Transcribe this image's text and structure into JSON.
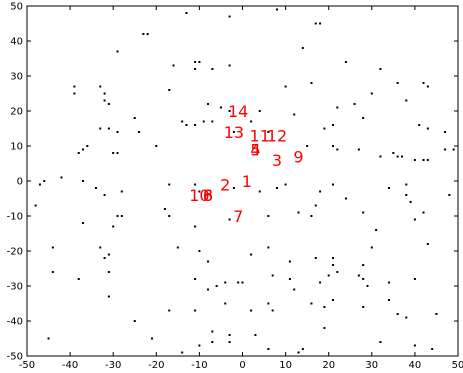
{
  "chart_data": {
    "type": "scatter",
    "title": "",
    "xlabel": "",
    "ylabel": "",
    "xlim": [
      -50,
      50
    ],
    "ylim": [
      -50,
      50
    ],
    "grid": false,
    "x_ticks": [
      -50,
      -40,
      -30,
      -20,
      -10,
      0,
      10,
      20,
      30,
      40,
      50
    ],
    "y_ticks": [
      -50,
      -40,
      -30,
      -20,
      -10,
      0,
      10,
      20,
      30,
      40,
      50
    ],
    "x_tick_labels": [
      "-50",
      "-40",
      "-30",
      "-20",
      "-10",
      "0",
      "10",
      "20",
      "30",
      "40",
      "50"
    ],
    "y_tick_labels": [
      "-50",
      "-40",
      "-30",
      "-20",
      "-10",
      "0",
      "10",
      "20",
      "30",
      "40",
      "50"
    ],
    "series": [
      {
        "marker": "dot",
        "color": "#000000",
        "points": [
          [
            -13,
            48
          ],
          [
            8,
            49
          ],
          [
            -3,
            47
          ],
          [
            17,
            45
          ],
          [
            18,
            45
          ],
          [
            -23,
            42
          ],
          [
            -22,
            42
          ],
          [
            -29,
            37
          ],
          [
            14,
            38
          ],
          [
            -11,
            34
          ],
          [
            -10,
            34
          ],
          [
            -16,
            33
          ],
          [
            -11,
            32
          ],
          [
            -7,
            32
          ],
          [
            -3,
            33
          ],
          [
            32,
            32
          ],
          [
            24,
            34
          ],
          [
            -39,
            27
          ],
          [
            -39,
            25
          ],
          [
            -33,
            27
          ],
          [
            -32,
            25
          ],
          [
            -32,
            23
          ],
          [
            -31,
            22
          ],
          [
            -17,
            26
          ],
          [
            10,
            27
          ],
          [
            16,
            28
          ],
          [
            36,
            28
          ],
          [
            42,
            28
          ],
          [
            43,
            27
          ],
          [
            30,
            25
          ],
          [
            26,
            22
          ],
          [
            38,
            23
          ],
          [
            -8,
            22
          ],
          [
            -5,
            21
          ],
          [
            -3,
            20
          ],
          [
            4,
            20
          ],
          [
            12,
            19
          ],
          [
            22,
            21
          ],
          [
            28,
            18
          ],
          [
            -25,
            18
          ],
          [
            -14,
            17
          ],
          [
            -13,
            16
          ],
          [
            -11,
            16
          ],
          [
            -9,
            17
          ],
          [
            -7,
            17
          ],
          [
            2,
            17
          ],
          [
            -33,
            15
          ],
          [
            -31,
            15
          ],
          [
            -29,
            14
          ],
          [
            -24,
            14
          ],
          [
            -2,
            14
          ],
          [
            6,
            14
          ],
          [
            19,
            15
          ],
          [
            21,
            16
          ],
          [
            41,
            16
          ],
          [
            43,
            15
          ],
          [
            47,
            14
          ],
          [
            -37,
            9
          ],
          [
            -38,
            8
          ],
          [
            -36,
            10
          ],
          [
            -30,
            8
          ],
          [
            -29,
            8
          ],
          [
            -20,
            10
          ],
          [
            15,
            10
          ],
          [
            21,
            10
          ],
          [
            22,
            9
          ],
          [
            27,
            9
          ],
          [
            32,
            7
          ],
          [
            35,
            8
          ],
          [
            36,
            7
          ],
          [
            37,
            7
          ],
          [
            40,
            6
          ],
          [
            42,
            6
          ],
          [
            43,
            6
          ],
          [
            47,
            9
          ],
          [
            49,
            9
          ],
          [
            -46,
            0
          ],
          [
            -47,
            -1
          ],
          [
            -48,
            -7
          ],
          [
            -42,
            1
          ],
          [
            -34,
            -2
          ],
          [
            -32,
            -4
          ],
          [
            -17,
            -1
          ],
          [
            -11,
            -1
          ],
          [
            -10,
            -3
          ],
          [
            -2,
            -2
          ],
          [
            4,
            -3
          ],
          [
            8,
            -2
          ],
          [
            18,
            -3
          ],
          [
            21,
            -1
          ],
          [
            34,
            -2
          ],
          [
            38,
            -1
          ],
          [
            -37,
            0
          ],
          [
            -28,
            -3
          ],
          [
            -28,
            -10
          ],
          [
            -29,
            -10
          ],
          [
            -30,
            -13
          ],
          [
            -37,
            -12
          ],
          [
            -17,
            -10
          ],
          [
            -18,
            -8
          ],
          [
            -11,
            -13
          ],
          [
            -3,
            -11
          ],
          [
            6,
            -10
          ],
          [
            13,
            -9
          ],
          [
            16,
            -10
          ],
          [
            17,
            -7
          ],
          [
            24,
            -5
          ],
          [
            28,
            -9
          ],
          [
            31,
            -14
          ],
          [
            38,
            -4
          ],
          [
            39,
            -6
          ],
          [
            40,
            -11
          ],
          [
            42,
            -9
          ],
          [
            48,
            -4
          ],
          [
            -33,
            -19
          ],
          [
            -32,
            -22
          ],
          [
            -31,
            -21
          ],
          [
            -31,
            -26
          ],
          [
            -44,
            -19
          ],
          [
            -44,
            -26
          ],
          [
            -15,
            -19
          ],
          [
            -10,
            -20
          ],
          [
            -8,
            -23
          ],
          [
            2,
            -21
          ],
          [
            6,
            -19
          ],
          [
            11,
            -23
          ],
          [
            17,
            -22
          ],
          [
            21,
            -22
          ],
          [
            21,
            -24
          ],
          [
            28,
            -24
          ],
          [
            30,
            -19
          ],
          [
            43,
            -18
          ],
          [
            -38,
            -28
          ],
          [
            -31,
            -33
          ],
          [
            -11,
            -28
          ],
          [
            -8,
            -31
          ],
          [
            -6,
            -30
          ],
          [
            -4,
            -29
          ],
          [
            -1,
            -29
          ],
          [
            0,
            -29
          ],
          [
            7,
            -27
          ],
          [
            11,
            -28
          ],
          [
            18,
            -29
          ],
          [
            20,
            -27
          ],
          [
            22,
            -26
          ],
          [
            27,
            -27
          ],
          [
            28,
            -28
          ],
          [
            29,
            -30
          ],
          [
            34,
            -29
          ],
          [
            40,
            -28
          ],
          [
            -25,
            -40
          ],
          [
            -17,
            -37
          ],
          [
            -11,
            -37
          ],
          [
            -7,
            -43
          ],
          [
            -3,
            -44
          ],
          [
            -4,
            -35
          ],
          [
            2,
            -37
          ],
          [
            6,
            -35
          ],
          [
            7,
            -37
          ],
          [
            12,
            -31
          ],
          [
            16,
            -35
          ],
          [
            19,
            -36
          ],
          [
            21,
            -34
          ],
          [
            28,
            -36
          ],
          [
            34,
            -34
          ],
          [
            36,
            -38
          ],
          [
            38,
            -39
          ],
          [
            45,
            -38
          ],
          [
            -10,
            -47
          ],
          [
            -7,
            -46
          ],
          [
            -3,
            -46
          ],
          [
            3,
            -44
          ],
          [
            6,
            -48
          ],
          [
            19,
            -42
          ],
          [
            32,
            -46
          ],
          [
            14,
            -48
          ],
          [
            40,
            -47
          ],
          [
            44,
            -48
          ],
          [
            13,
            -49
          ],
          [
            -45,
            -45
          ],
          [
            -21,
            -45
          ],
          [
            -14,
            -49
          ],
          [
            10,
            -1
          ]
        ]
      }
    ],
    "annotations": [
      {
        "text": "14",
        "x": -1,
        "y": 20
      },
      {
        "text": "13",
        "x": -2,
        "y": 14
      },
      {
        "text": "11",
        "x": 4,
        "y": 13
      },
      {
        "text": "12",
        "x": 8,
        "y": 13
      },
      {
        "text": "4",
        "x": 3,
        "y": 9
      },
      {
        "text": "5",
        "x": 3,
        "y": 9
      },
      {
        "text": "3",
        "x": 8,
        "y": 6
      },
      {
        "text": "9",
        "x": 13,
        "y": 7
      },
      {
        "text": "2",
        "x": -4,
        "y": -1
      },
      {
        "text": "1",
        "x": 1,
        "y": 0
      },
      {
        "text": "10",
        "x": -10,
        "y": -4
      },
      {
        "text": "6",
        "x": -8,
        "y": -4
      },
      {
        "text": "8",
        "x": -8,
        "y": -4
      },
      {
        "text": "7",
        "x": -1,
        "y": -10
      }
    ]
  },
  "colors": {
    "point": "#000000",
    "annotation": "#ff0000",
    "axis": "#000000",
    "background": "#ffffff"
  }
}
